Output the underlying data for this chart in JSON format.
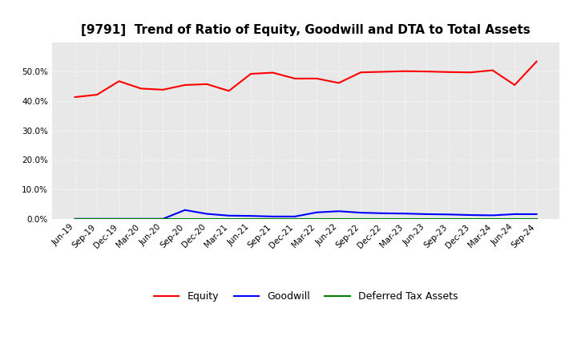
{
  "title": "[9791]  Trend of Ratio of Equity, Goodwill and DTA to Total Assets",
  "x_labels": [
    "Jun-19",
    "Sep-19",
    "Dec-19",
    "Mar-20",
    "Jun-20",
    "Sep-20",
    "Dec-20",
    "Mar-21",
    "Jun-21",
    "Sep-21",
    "Dec-21",
    "Mar-22",
    "Jun-22",
    "Sep-22",
    "Dec-22",
    "Mar-23",
    "Jun-23",
    "Sep-23",
    "Dec-23",
    "Mar-24",
    "Jun-24",
    "Sep-24"
  ],
  "equity": [
    0.414,
    0.422,
    0.468,
    0.443,
    0.439,
    0.455,
    0.458,
    0.435,
    0.493,
    0.497,
    0.477,
    0.477,
    0.462,
    0.498,
    0.5,
    0.502,
    0.501,
    0.499,
    0.498,
    0.505,
    0.455,
    0.535
  ],
  "goodwill": [
    0.0,
    0.0,
    0.0,
    0.0,
    0.0,
    0.03,
    0.017,
    0.011,
    0.01,
    0.008,
    0.008,
    0.022,
    0.026,
    0.021,
    0.019,
    0.018,
    0.016,
    0.015,
    0.013,
    0.012,
    0.016,
    0.016
  ],
  "dta": [
    0.0,
    0.0,
    0.0,
    0.0,
    0.0,
    0.0,
    0.0,
    0.0,
    0.0,
    0.0,
    0.0,
    0.0,
    0.0,
    0.0,
    0.0,
    0.0,
    0.0,
    0.0,
    0.0,
    0.0,
    0.0,
    0.0
  ],
  "equity_color": "#ff0000",
  "goodwill_color": "#0000ff",
  "dta_color": "#008000",
  "ylim": [
    0.0,
    0.6
  ],
  "yticks": [
    0.0,
    0.1,
    0.2,
    0.3,
    0.4,
    0.5
  ],
  "background_color": "#ffffff",
  "plot_bg_color": "#e8e8e8",
  "grid_color": "#ffffff",
  "title_fontsize": 11,
  "tick_fontsize": 7.5,
  "legend_labels": [
    "Equity",
    "Goodwill",
    "Deferred Tax Assets"
  ]
}
